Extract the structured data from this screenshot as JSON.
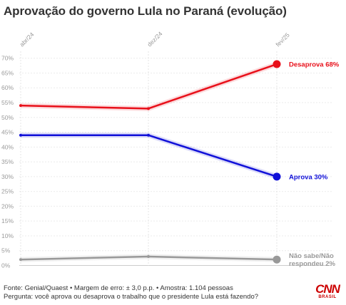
{
  "chart_data": {
    "type": "line",
    "title": "Aprovação do governo Lula no Paraná (evolução)",
    "categories": [
      "abr/24",
      "dez/24",
      "fev/25"
    ],
    "y_ticks": [
      "0%",
      "5%",
      "10%",
      "15%",
      "20%",
      "25%",
      "30%",
      "35%",
      "40%",
      "45%",
      "50%",
      "55%",
      "60%",
      "65%",
      "70%"
    ],
    "ylim": [
      0,
      70
    ],
    "grid": true,
    "series": [
      {
        "name": "Desaprova",
        "values": [
          54,
          53,
          68
        ],
        "color": "#e8101a",
        "end_label": [
          "Desaprova 68%"
        ]
      },
      {
        "name": "Aprova",
        "values": [
          44,
          44,
          30
        ],
        "color": "#1010d8",
        "end_label": [
          "Aprova 30%"
        ]
      },
      {
        "name": "Não sabe/Não respondeu",
        "values": [
          2,
          3,
          2
        ],
        "color": "#999999",
        "end_label": [
          "Não sabe/Não",
          "respondeu 2%"
        ]
      }
    ]
  },
  "footer": {
    "source": "Fonte: Genial/Quaest • Margem de erro: ± 3,0 p.p. • Amostra: 1.104 pessoas",
    "question": "Pergunta: você aprova ou desaprova o trabalho que o presidente Lula está fazendo?"
  },
  "logo": {
    "main": "CNN",
    "sub": "BRASIL"
  }
}
